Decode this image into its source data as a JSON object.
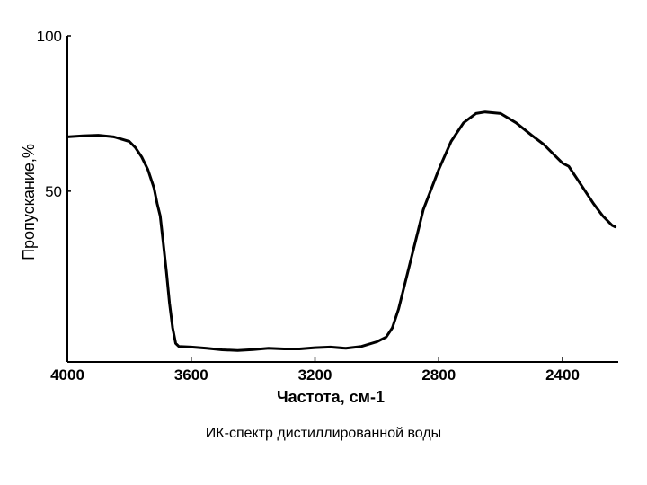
{
  "chart_data": {
    "type": "line",
    "xlabel": "Частота, см-1",
    "ylabel": "Пропускание,%",
    "x_ticks": [
      "4000",
      "3600",
      "3200",
      "2800",
      "2400"
    ],
    "x_tick_values": [
      4000,
      3600,
      3200,
      2800,
      2400
    ],
    "y_ticks": [
      "100",
      "50"
    ],
    "y_tick_values": [
      100,
      50
    ],
    "xlim": [
      4000,
      2220
    ],
    "ylim": [
      -5,
      100
    ],
    "grid": false,
    "series": [
      {
        "x": [
          4000,
          3950,
          3900,
          3850,
          3800,
          3780,
          3760,
          3740,
          3720,
          3710,
          3700,
          3690,
          3680,
          3670,
          3660,
          3650,
          3640,
          3600,
          3550,
          3500,
          3450,
          3400,
          3350,
          3300,
          3250,
          3200,
          3150,
          3100,
          3050,
          3000,
          2970,
          2950,
          2930,
          2910,
          2890,
          2870,
          2850,
          2800,
          2760,
          2720,
          2700,
          2680,
          2650,
          2600,
          2550,
          2500,
          2460,
          2420,
          2400,
          2380,
          2360,
          2340,
          2300,
          2270,
          2250,
          2240,
          2230
        ],
        "y": [
          67.5,
          67.8,
          68.0,
          67.5,
          66.0,
          64.0,
          61.0,
          57.0,
          51.0,
          46.0,
          42.0,
          33.0,
          24.0,
          14.0,
          6.0,
          1.0,
          0.0,
          -0.2,
          -0.6,
          -1.1,
          -1.3,
          -1.0,
          -0.6,
          -0.8,
          -0.8,
          -0.4,
          -0.2,
          -0.6,
          0.0,
          1.5,
          3.0,
          6.0,
          12.0,
          20.0,
          28.0,
          36.0,
          44.0,
          57.0,
          66.0,
          72.0,
          73.5,
          75.0,
          75.5,
          75.0,
          72.0,
          68.0,
          65.0,
          61.0,
          59.0,
          58.0,
          55.0,
          52.0,
          46.0,
          42.0,
          40.0,
          39.0,
          38.5
        ]
      }
    ]
  },
  "caption": "ИК-спектр дистиллированной воды"
}
